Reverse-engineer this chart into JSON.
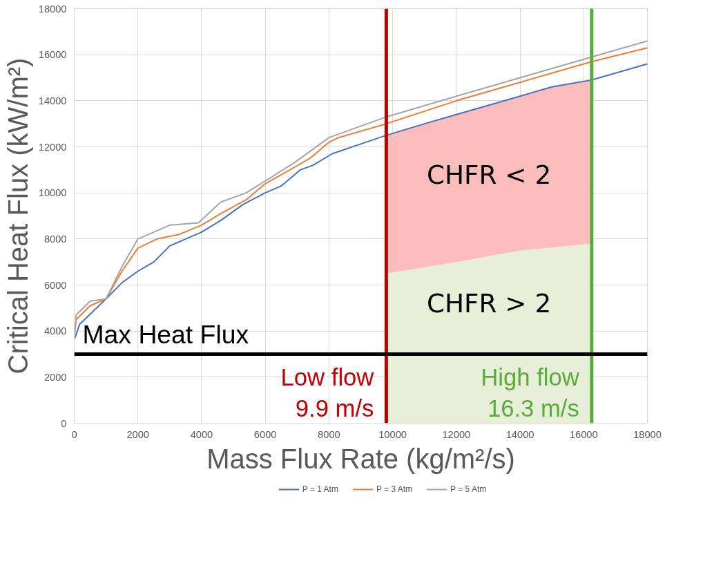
{
  "chart_data": {
    "type": "line",
    "xlabel": "Mass Flux Rate (kg/m²/s)",
    "ylabel": "Critical Heat Flux (kW/m²)",
    "xlim": [
      0,
      18000
    ],
    "ylim": [
      0,
      18000
    ],
    "xticks": [
      0,
      2000,
      4000,
      6000,
      8000,
      10000,
      12000,
      14000,
      16000,
      18000
    ],
    "yticks": [
      0,
      2000,
      4000,
      6000,
      8000,
      10000,
      12000,
      14000,
      16000,
      18000
    ],
    "grid": true,
    "legend": "bottom",
    "marker": "none",
    "line_style": "solid",
    "series": [
      {
        "type": "area",
        "color": "#fbbcbc",
        "x": [
          9800,
          11000,
          12000,
          13000,
          14000,
          15000,
          16250
        ],
        "values": [
          12500,
          13000,
          13400,
          13800,
          14200,
          14600,
          14900
        ]
      },
      {
        "type": "area",
        "color": "#e8efd8",
        "x": [
          9800,
          12000,
          14000,
          16250
        ],
        "values": [
          6500,
          7000,
          7500,
          7800
        ]
      },
      {
        "name": "P = 1 Atm",
        "color": "#4472c4",
        "x": [
          0,
          20,
          170,
          1000,
          1500,
          2000,
          2500,
          3000,
          3500,
          4000,
          4600,
          5300,
          6000,
          6500,
          7100,
          7500,
          8100,
          9800,
          11000,
          12000,
          13000,
          14000,
          15000,
          16250,
          17000,
          18000
        ],
        "values": [
          3700,
          3700,
          4300,
          5400,
          6100,
          6600,
          7000,
          7700,
          8000,
          8300,
          8800,
          9500,
          10000,
          10300,
          11000,
          11200,
          11700,
          12500,
          13000,
          13400,
          13800,
          14200,
          14600,
          14900,
          15200,
          15600
        ]
      },
      {
        "name": "P = 3 Atm",
        "color": "#ed7d31",
        "x": [
          0,
          60,
          500,
          1000,
          1500,
          2000,
          2600,
          3300,
          4000,
          4600,
          5400,
          6000,
          6900,
          7400,
          8000,
          8300,
          9800,
          12000,
          14000,
          16250,
          18000
        ],
        "values": [
          3700,
          4500,
          5100,
          5400,
          6600,
          7600,
          8000,
          8200,
          8600,
          9100,
          9700,
          10400,
          11100,
          11500,
          12200,
          12400,
          13000,
          14000,
          14800,
          15700,
          16300
        ]
      },
      {
        "name": "P = 5 Atm",
        "color": "#a5a5a5",
        "x": [
          0,
          60,
          500,
          1000,
          1500,
          2000,
          3000,
          3900,
          4600,
          5400,
          6900,
          8000,
          9800,
          12000,
          14000,
          16250,
          18000
        ],
        "values": [
          3700,
          4700,
          5300,
          5400,
          6800,
          8000,
          8600,
          8700,
          9600,
          10000,
          11300,
          12400,
          13300,
          14200,
          15000,
          15900,
          16600
        ]
      }
    ],
    "ref_lines": [
      {
        "axis": "x",
        "value": 9800,
        "label": "Low flow\n9.9 m/s",
        "color": "#c00000"
      },
      {
        "axis": "x",
        "value": 16250,
        "label": "High flow\n16.3 m/s",
        "color": "#5aaa3c"
      },
      {
        "axis": "y",
        "value": 3000,
        "label": "Max Heat Flux",
        "color": "#000000"
      }
    ],
    "annotations": [
      "CHFR < 2",
      "CHFR > 2"
    ]
  }
}
